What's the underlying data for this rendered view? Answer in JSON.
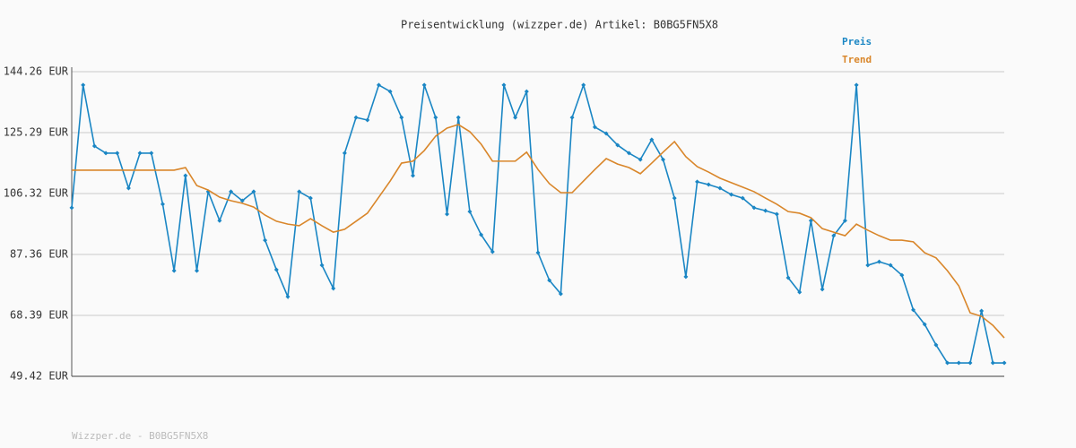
{
  "chart_data": {
    "type": "line",
    "title": "Preisentwicklung (wizzper.de) Artikel: B0BG5FN5X8",
    "footer": "Wizzper.de - B0BG5FN5X8",
    "ylim": [
      49.42,
      144.26
    ],
    "yticks": [
      {
        "value": 49.42,
        "label": "49.42 EUR"
      },
      {
        "value": 68.39,
        "label": "68.39 EUR"
      },
      {
        "value": 87.36,
        "label": "87.36 EUR"
      },
      {
        "value": 106.32,
        "label": "106.32 EUR"
      },
      {
        "value": 125.29,
        "label": "125.29 EUR"
      },
      {
        "value": 144.26,
        "label": "144.26 EUR"
      }
    ],
    "grid": true,
    "series": [
      {
        "name": "Preis",
        "color": "#1a86c4",
        "markers": true,
        "values": [
          101.9,
          140.1,
          121.1,
          118.9,
          118.9,
          108.0,
          118.9,
          118.9,
          103.0,
          82.3,
          111.9,
          82.3,
          106.9,
          97.9,
          106.9,
          104.1,
          106.9,
          91.8,
          82.6,
          74.2,
          106.9,
          104.9,
          84.0,
          76.8,
          118.9,
          130.0,
          129.2,
          140.1,
          138.1,
          130.0,
          111.9,
          140.1,
          130.0,
          99.9,
          130.0,
          100.7,
          93.5,
          88.2,
          140.1,
          130.0,
          138.1,
          87.9,
          79.3,
          75.1,
          130.0,
          140.1,
          127.0,
          125.0,
          121.4,
          118.9,
          116.9,
          123.1,
          116.9,
          104.9,
          80.4,
          110.0,
          109.1,
          108.0,
          106.0,
          104.9,
          101.9,
          101.0,
          99.9,
          80.1,
          75.6,
          97.9,
          76.5,
          93.2,
          97.9,
          140.1,
          84.0,
          85.1,
          84.0,
          80.9,
          70.1,
          65.6,
          59.2,
          53.6,
          53.6,
          53.6,
          69.8,
          53.6,
          53.6
        ]
      },
      {
        "name": "Trend",
        "color": "#d9862a",
        "markers": false,
        "values": [
          113.6,
          113.6,
          113.6,
          113.6,
          113.6,
          113.6,
          113.6,
          113.6,
          113.6,
          113.6,
          114.4,
          108.8,
          107.4,
          105.2,
          104.1,
          103.3,
          102.1,
          99.6,
          97.7,
          96.8,
          96.3,
          98.5,
          96.3,
          94.3,
          95.2,
          97.7,
          100.2,
          105.2,
          110.2,
          115.8,
          116.4,
          119.7,
          124.2,
          126.7,
          127.8,
          125.6,
          121.7,
          116.4,
          116.4,
          116.4,
          119.2,
          113.8,
          109.4,
          106.6,
          106.6,
          110.2,
          113.8,
          117.2,
          115.5,
          114.4,
          112.5,
          115.8,
          119.2,
          122.5,
          117.8,
          114.7,
          113.0,
          111.1,
          109.7,
          108.3,
          106.9,
          104.9,
          103.0,
          100.7,
          100.2,
          98.8,
          95.4,
          94.3,
          93.2,
          96.8,
          94.9,
          93.2,
          91.8,
          91.8,
          91.3,
          87.9,
          86.3,
          82.3,
          77.6,
          69.2,
          68.1,
          65.3,
          61.4
        ]
      }
    ]
  }
}
